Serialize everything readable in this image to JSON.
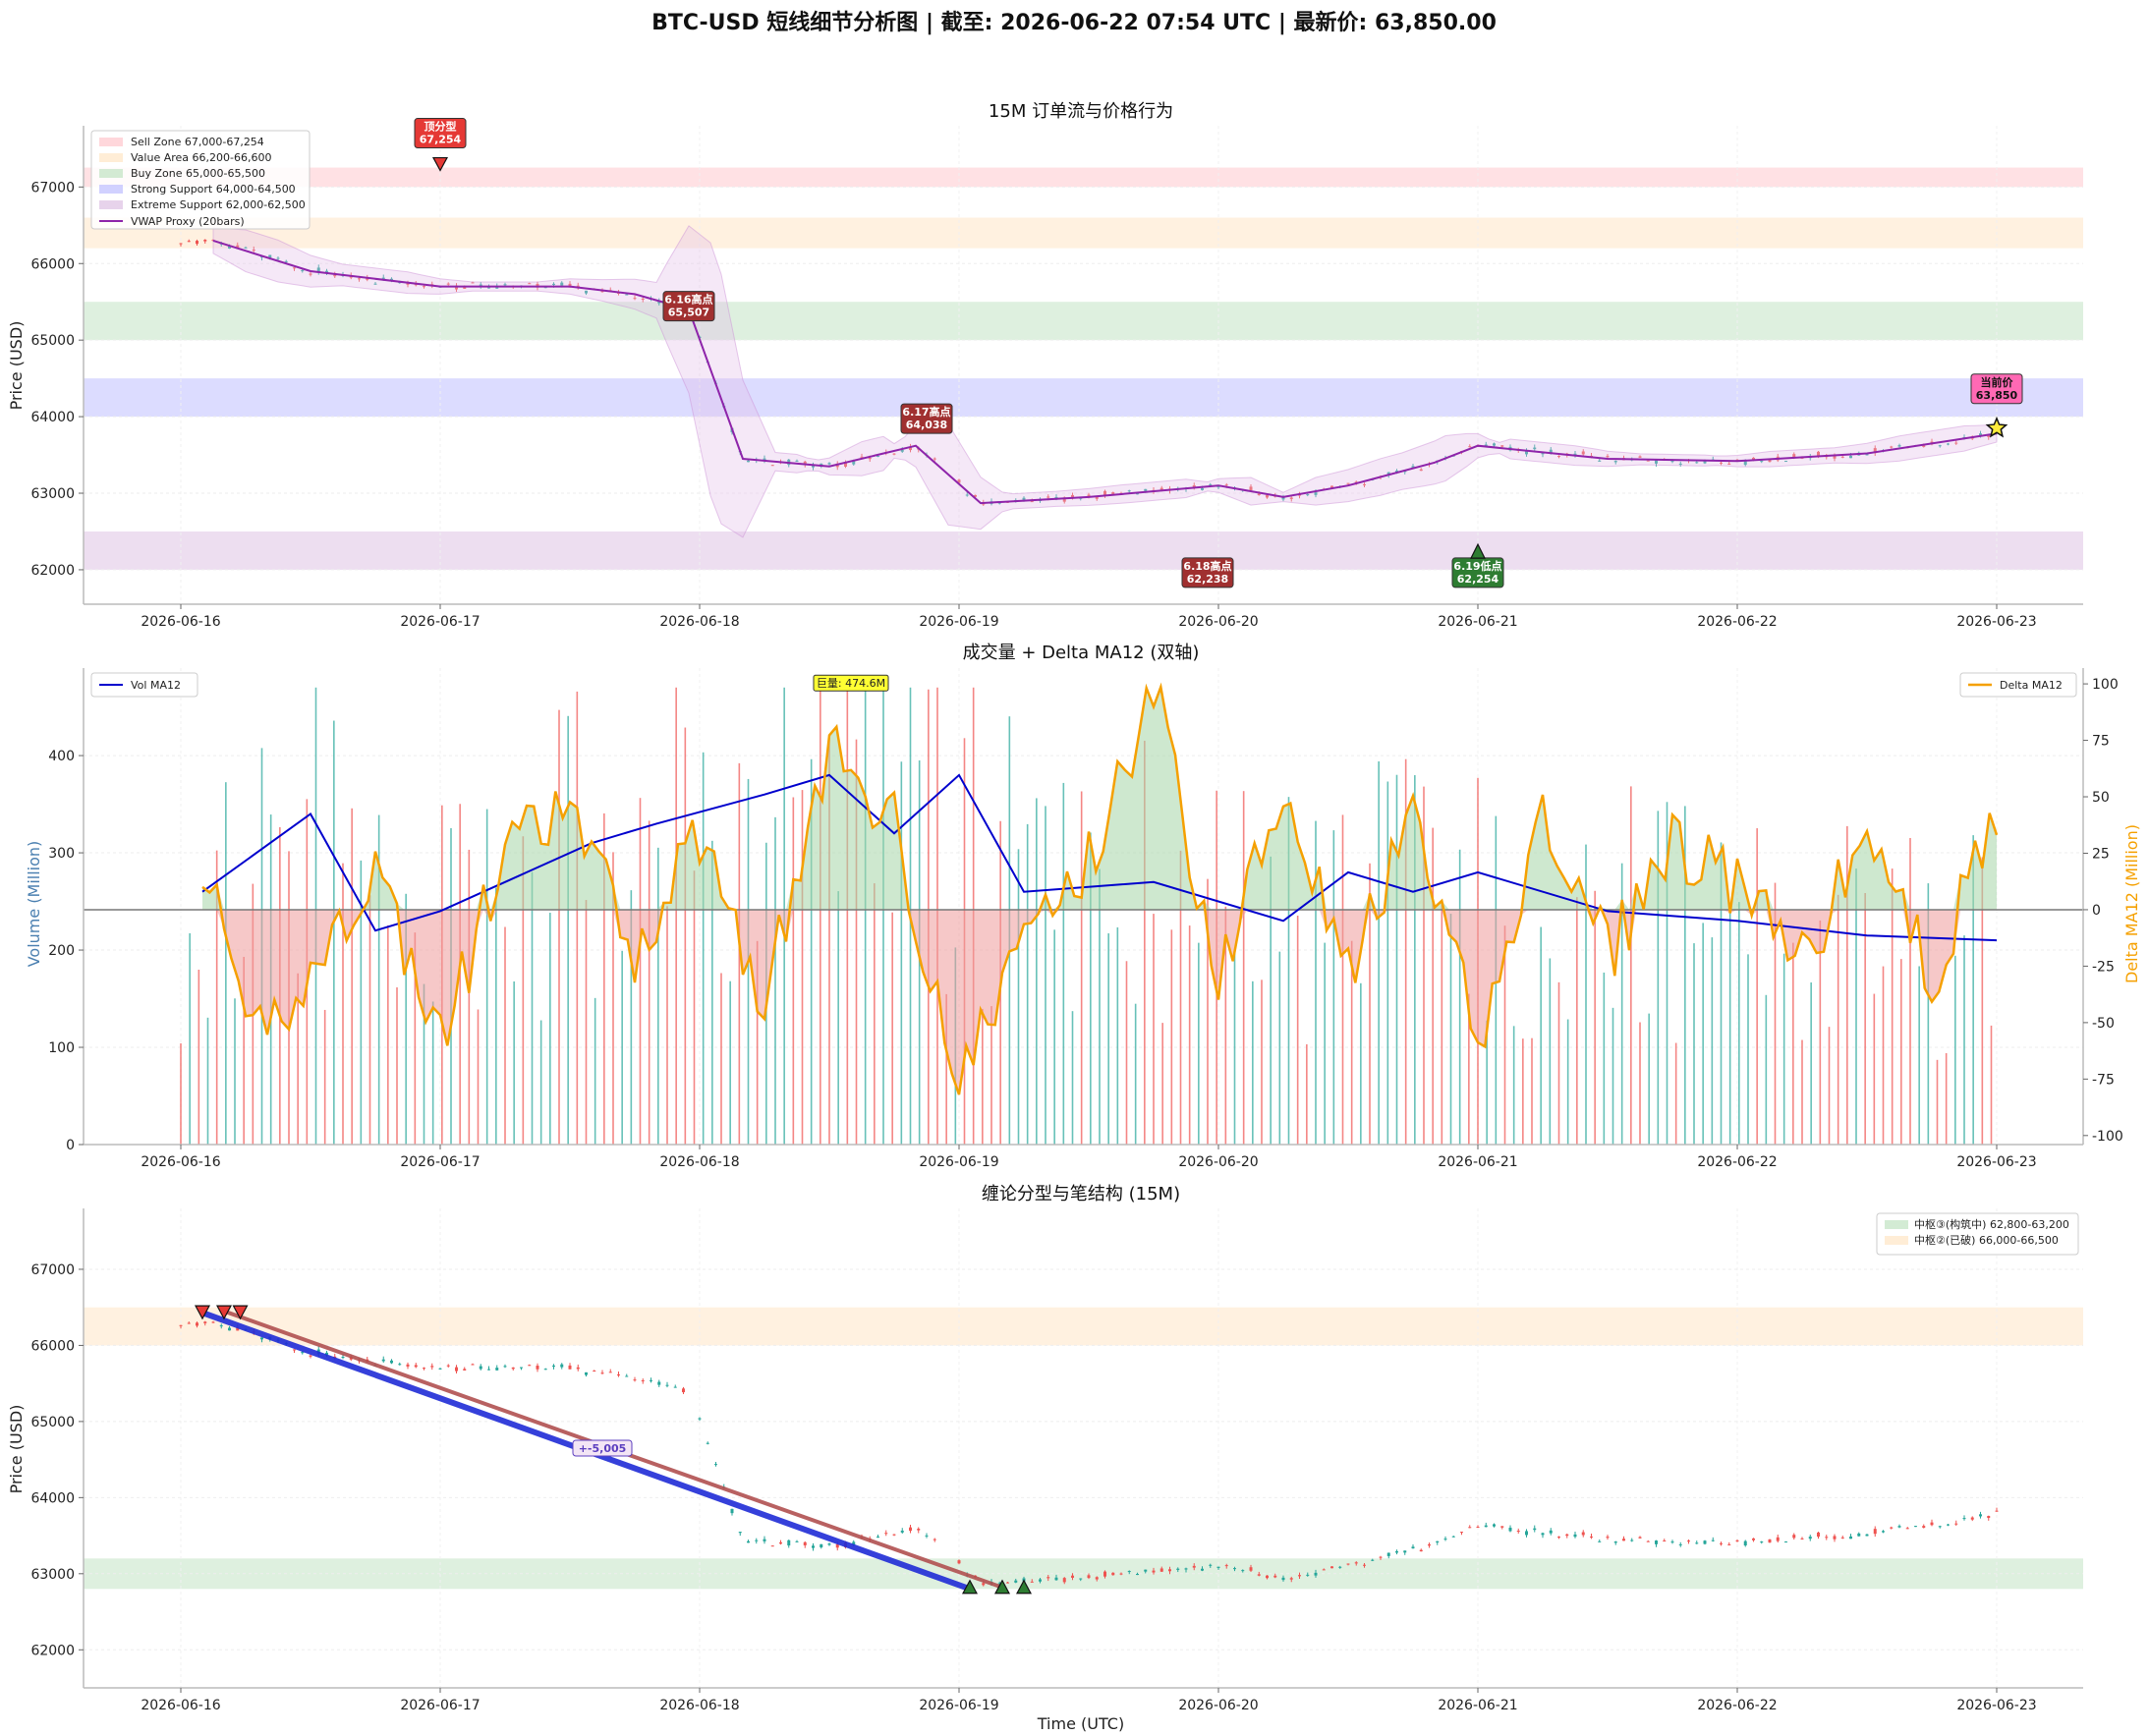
{
  "title": "BTC-USD 短线细节分析图 | 截至: 2026-06-22 07:54 UTC | 最新价: 63,850.00",
  "colors": {
    "up": "#26a69a",
    "down": "#ef5350",
    "vwap": "#8e24aa",
    "vol_ma": "#0000cd",
    "delta": "#f5a000",
    "sell": "#ffcdd2",
    "value": "#ffe8cc",
    "buy": "#c8e6c9",
    "strong": "#c5c5ff",
    "extreme": "#e1c8e6",
    "pen_red": "#b05050",
    "pen_blue": "#1f2bd6"
  },
  "chart_data": [
    {
      "type": "line",
      "title": "15M 订单流与价格行为",
      "ylabel": "Price (USD)",
      "ylim": [
        61550,
        67800
      ],
      "xlim": [
        "2026-06-15 15:00",
        "2026-06-23 08:00"
      ],
      "yticks": [
        "62000",
        "63000",
        "64000",
        "65000",
        "66000",
        "67000"
      ],
      "xticks": [
        "2026-06-16",
        "2026-06-17",
        "2026-06-18",
        "2026-06-19",
        "2026-06-20",
        "2026-06-21",
        "2026-06-22",
        "2026-06-23"
      ],
      "legend_position": "top-left",
      "zones": [
        {
          "label": "Sell Zone 67,000-67,254",
          "low": 67000,
          "high": 67254,
          "color": "#ffcdd2"
        },
        {
          "label": "Value Area 66,200-66,600",
          "low": 66200,
          "high": 66600,
          "color": "#ffe8cc"
        },
        {
          "label": "Buy Zone 65,000-65,500",
          "low": 65000,
          "high": 65500,
          "color": "#c8e6c9"
        },
        {
          "label": "Strong Support 64,000-64,500",
          "low": 64000,
          "high": 64500,
          "color": "#c5c5ff"
        },
        {
          "label": "Extreme Support 62,000-62,500",
          "low": 62000,
          "high": 62500,
          "color": "#e1c8e6"
        }
      ],
      "series": [
        {
          "name": "VWAP Proxy (20bars)",
          "x": [
            "2026-06-16 03:00",
            "2026-06-16 12:00",
            "2026-06-17 00:00",
            "2026-06-17 12:00",
            "2026-06-17 18:00",
            "2026-06-17 23:00",
            "2026-06-18 04:00",
            "2026-06-18 12:00",
            "2026-06-18 20:00",
            "2026-06-19 02:00",
            "2026-06-19 12:00",
            "2026-06-20 00:00",
            "2026-06-20 06:00",
            "2026-06-20 12:00",
            "2026-06-20 20:00",
            "2026-06-21 00:00",
            "2026-06-21 12:00",
            "2026-06-22 00:00",
            "2026-06-22 12:00",
            "2026-06-23 00:00"
          ],
          "y": [
            66300,
            65900,
            65700,
            65700,
            65600,
            65400,
            63450,
            63350,
            63620,
            62870,
            62950,
            63100,
            62950,
            63100,
            63400,
            63620,
            63450,
            63420,
            63520,
            63780
          ]
        }
      ],
      "annotations": [
        {
          "text": "顶分型\n67,254",
          "x": "2026-06-17 00:00",
          "y": 67254,
          "color": "#e53935"
        },
        {
          "text": "6.16高点\n65,507",
          "x": "2026-06-17 23:00",
          "y": 65507,
          "color": "#a03030"
        },
        {
          "text": "6.17高点\n64,038",
          "x": "2026-06-18 21:00",
          "y": 64038,
          "color": "#a03030"
        },
        {
          "text": "6.18高点\n62,238",
          "x": "2026-06-19 23:00",
          "y": 62238,
          "color": "#a03030"
        },
        {
          "text": "6.19低点\n62,254",
          "x": "2026-06-21 00:00",
          "y": 62254,
          "color": "#2e7d32"
        },
        {
          "text": "当前价\n63,850",
          "x": "2026-06-23 00:00",
          "y": 63850,
          "color": "#ff69b4"
        }
      ]
    },
    {
      "type": "bar",
      "title": "成交量 + Delta MA12 (双轴)",
      "ylabel": "Volume (Million)",
      "ylabel_right": "Delta MA12 (Million)",
      "ylim": [
        0,
        490
      ],
      "ylim_right": [
        -104,
        107
      ],
      "yticks": [
        "0",
        "100",
        "200",
        "300",
        "400"
      ],
      "yticks_right": [
        "-100",
        "-75",
        "-50",
        "-25",
        "0",
        "25",
        "50",
        "75",
        "100"
      ],
      "legend_left": "Vol MA12",
      "legend_right": "Delta MA12",
      "peak_label": "巨量: 474.6M",
      "series": [
        {
          "name": "Vol MA12",
          "x": [
            "2026-06-16 02:00",
            "2026-06-16 12:00",
            "2026-06-16 18:00",
            "2026-06-17 00:00",
            "2026-06-17 08:00",
            "2026-06-17 14:00",
            "2026-06-17 20:00",
            "2026-06-18 06:00",
            "2026-06-18 12:00",
            "2026-06-18 18:00",
            "2026-06-19 00:00",
            "2026-06-19 06:00",
            "2026-06-19 18:00",
            "2026-06-20 06:00",
            "2026-06-20 12:00",
            "2026-06-20 18:00",
            "2026-06-21 00:00",
            "2026-06-21 12:00",
            "2026-06-22 00:00",
            "2026-06-22 12:00",
            "2026-06-23 00:00"
          ],
          "y": [
            260,
            340,
            220,
            240,
            280,
            310,
            330,
            360,
            380,
            320,
            380,
            260,
            270,
            230,
            280,
            260,
            280,
            240,
            230,
            215,
            210
          ]
        },
        {
          "name": "Delta MA12",
          "x": [
            "2026-06-16 02:00",
            "2026-06-16 06:00",
            "2026-06-16 12:00",
            "2026-06-16 18:00",
            "2026-06-17 00:00",
            "2026-06-17 06:00",
            "2026-06-17 12:00",
            "2026-06-17 18:00",
            "2026-06-18 00:00",
            "2026-06-18 06:00",
            "2026-06-18 12:00",
            "2026-06-18 18:00",
            "2026-06-19 00:00",
            "2026-06-19 06:00",
            "2026-06-19 12:00",
            "2026-06-19 18:00",
            "2026-06-20 00:00",
            "2026-06-20 06:00",
            "2026-06-20 12:00",
            "2026-06-20 18:00",
            "2026-06-21 00:00",
            "2026-06-21 06:00",
            "2026-06-21 12:00",
            "2026-06-21 18:00",
            "2026-06-22 00:00",
            "2026-06-22 06:00",
            "2026-06-22 12:00",
            "2026-06-22 18:00",
            "2026-06-23 00:00"
          ],
          "y": [
            25,
            -60,
            -30,
            20,
            -60,
            25,
            45,
            -20,
            35,
            -40,
            70,
            40,
            -80,
            -10,
            20,
            100,
            -30,
            60,
            -30,
            40,
            -60,
            40,
            -20,
            30,
            10,
            -25,
            35,
            -30,
            40
          ]
        }
      ]
    },
    {
      "type": "line",
      "title": "缠论分型与笔结构 (15M)",
      "ylabel": "Price (USD)",
      "xlabel": "Time (UTC)",
      "ylim": [
        61500,
        67800
      ],
      "yticks": [
        "62000",
        "63000",
        "64000",
        "65000",
        "66000",
        "67000"
      ],
      "legend_position": "top-right",
      "zones": [
        {
          "label": "中枢③(构筑中) 62,800-63,200",
          "low": 62800,
          "high": 63200,
          "color": "#c8e6c9"
        },
        {
          "label": "中枢②(已破) 66,000-66,500",
          "low": 66000,
          "high": 66500,
          "color": "#ffe8cc"
        }
      ],
      "pens": [
        {
          "from_x": "2026-06-16 04:00",
          "from_y": 66450,
          "to_x": "2026-06-19 04:00",
          "to_y": 62820,
          "color": "#b05050"
        },
        {
          "from_x": "2026-06-16 02:00",
          "from_y": 66430,
          "to_x": "2026-06-19 01:00",
          "to_y": 62800,
          "color": "#1f2bd6"
        }
      ],
      "pen_label": "+-5,005"
    }
  ]
}
